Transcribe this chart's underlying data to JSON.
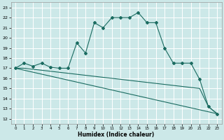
{
  "xlabel": "Humidex (Indice chaleur)",
  "bg_color": "#cce8e8",
  "grid_color": "#ffffff",
  "line_color": "#1a6b60",
  "xlim": [
    -0.5,
    23.5
  ],
  "ylim": [
    11.5,
    23.5
  ],
  "yticks": [
    12,
    13,
    14,
    15,
    16,
    17,
    18,
    19,
    20,
    21,
    22,
    23
  ],
  "xticks": [
    0,
    1,
    2,
    3,
    4,
    5,
    6,
    7,
    8,
    9,
    10,
    11,
    12,
    13,
    14,
    15,
    16,
    17,
    18,
    19,
    20,
    21,
    22,
    23
  ],
  "line1_x": [
    0,
    1,
    2,
    3,
    4,
    5,
    6,
    7,
    8,
    9,
    10,
    11,
    12,
    13,
    14,
    15,
    16,
    17,
    18,
    19,
    20,
    21,
    22,
    23
  ],
  "line1_y": [
    17.0,
    17.5,
    17.2,
    17.5,
    17.1,
    17.0,
    17.0,
    19.5,
    18.5,
    21.5,
    21.0,
    22.0,
    22.0,
    22.0,
    22.5,
    21.5,
    21.5,
    19.0,
    17.5,
    17.5,
    17.5,
    15.9,
    13.2,
    12.5
  ],
  "line2_x": [
    0,
    23
  ],
  "line2_y": [
    17.0,
    12.5
  ],
  "line3_x": [
    0,
    1,
    2,
    3,
    4,
    5,
    6,
    7,
    8,
    9,
    10,
    11,
    12,
    13,
    14,
    15,
    16,
    17,
    18,
    19,
    20,
    21,
    22,
    23
  ],
  "line3_y": [
    17.0,
    17.0,
    16.9,
    16.8,
    16.7,
    16.6,
    16.5,
    16.4,
    16.3,
    16.2,
    16.1,
    16.0,
    15.9,
    15.8,
    15.7,
    15.6,
    15.5,
    15.4,
    15.3,
    15.2,
    15.1,
    15.0,
    13.2,
    12.5
  ]
}
